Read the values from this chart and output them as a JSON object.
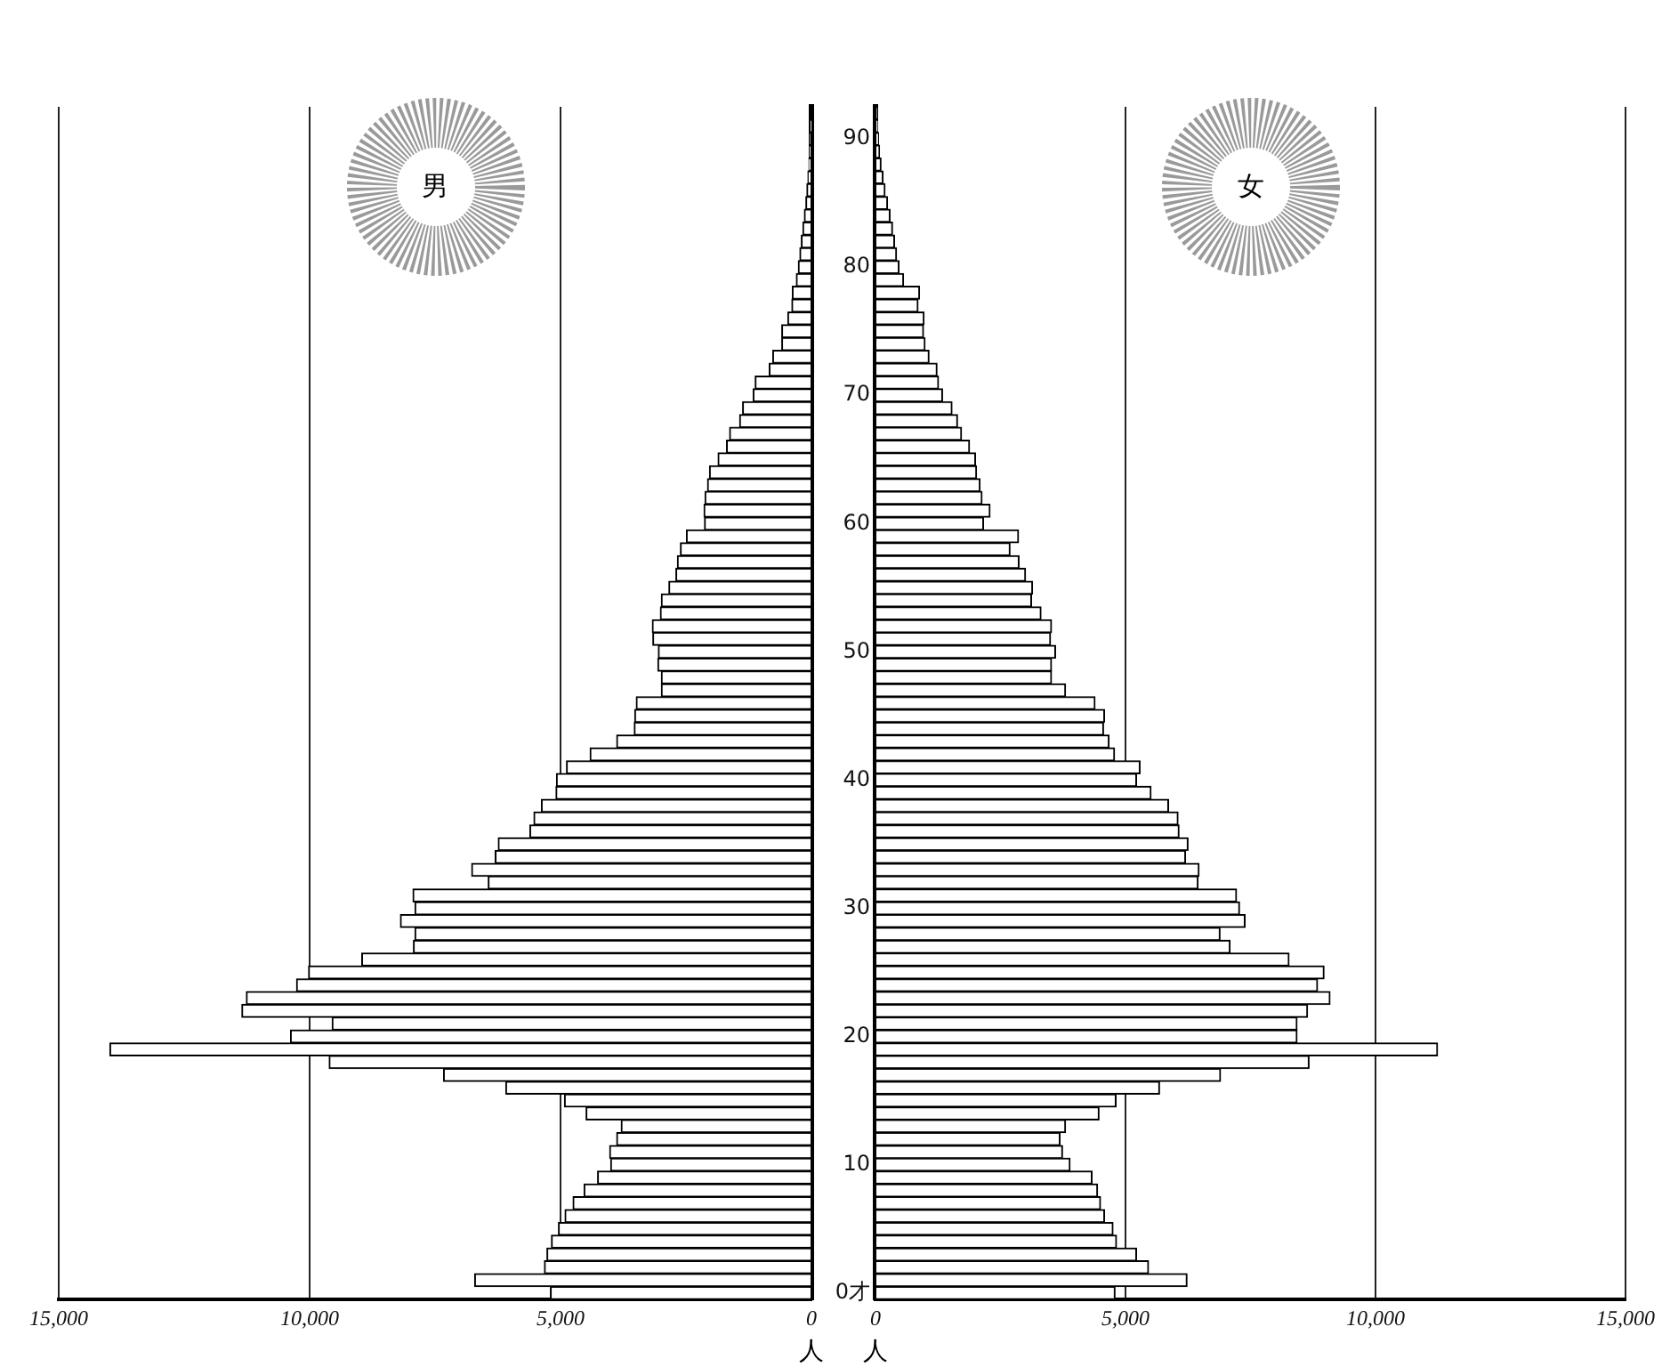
{
  "chart_data": [
    {
      "type": "bar",
      "orientation": "horizontal",
      "title": "男",
      "xlabel": "人",
      "color": "#ffffff",
      "grid": "x",
      "categories": [
        null,
        null,
        null,
        null,
        null,
        null,
        null,
        null,
        null,
        null,
        null,
        null,
        null,
        null,
        null,
        null,
        null,
        null,
        null,
        null,
        null,
        null,
        null,
        null,
        null,
        null,
        null,
        null,
        null,
        null,
        null,
        null,
        null,
        null,
        null,
        null,
        null,
        null,
        null,
        null,
        null,
        null,
        null,
        null,
        null,
        null,
        null,
        null,
        null,
        null,
        null,
        null,
        null,
        null,
        null,
        null,
        null,
        null,
        null,
        null,
        null,
        null,
        null,
        null,
        null,
        null,
        null,
        null,
        null,
        null,
        null,
        null,
        null,
        null,
        null,
        null,
        null,
        null,
        null,
        null,
        null,
        null,
        null,
        null,
        null,
        null,
        null,
        null,
        null,
        null,
        null,
        null,
        null
      ],
      "values": [
        null,
        10,
        20,
        30,
        50,
        70,
        90,
        110,
        140,
        170,
        200,
        230,
        260,
        300,
        380,
        390,
        470,
        590,
        590,
        770,
        840,
        1120,
        1160,
        1370,
        1430,
        1630,
        1690,
        1860,
        2030,
        2070,
        2120,
        2140,
        2130,
        2490,
        2610,
        2670,
        2700,
        2840,
        2990,
        3010,
        3170,
        3160,
        3050,
        3060,
        2990,
        2990,
        3490,
        3520,
        3530,
        3880,
        4410,
        4880,
        5080,
        5090,
        5380,
        5530,
        5610,
        6240,
        6300,
        6770,
        6440,
        7940,
        7900,
        8190,
        7900,
        7930,
        8960,
        10020,
        10260,
        11260,
        11350,
        9550,
        10380,
        13980,
        9610,
        7330,
        6090,
        4920,
        4490,
        3790,
        3880,
        4020,
        4000,
        4260,
        4530,
        4750,
        4910,
        5040,
        5180,
        5270,
        5320,
        6710,
        5200
      ],
      "xlim": [
        15000,
        0
      ],
      "xticks": [
        {
          "value": 15000,
          "label": "15,000"
        },
        {
          "value": 10000,
          "label": "10,000"
        },
        {
          "value": 5000,
          "label": "5,000"
        },
        0
      ]
    },
    {
      "type": "bar",
      "orientation": "horizontal",
      "title": "女",
      "xlabel": "人",
      "color": "#ffffff",
      "grid": "x",
      "categories": [
        null,
        null,
        "90",
        null,
        null,
        null,
        null,
        null,
        null,
        null,
        null,
        null,
        "80",
        null,
        null,
        null,
        null,
        null,
        null,
        null,
        null,
        null,
        "70",
        null,
        null,
        null,
        null,
        null,
        null,
        null,
        null,
        null,
        "60",
        null,
        null,
        null,
        null,
        null,
        null,
        null,
        null,
        null,
        "50",
        null,
        null,
        null,
        null,
        null,
        null,
        null,
        null,
        null,
        "40",
        null,
        null,
        null,
        null,
        null,
        null,
        null,
        null,
        null,
        "30",
        null,
        null,
        null,
        null,
        null,
        null,
        null,
        null,
        null,
        "20",
        null,
        null,
        null,
        null,
        null,
        null,
        null,
        null,
        null,
        "10",
        null,
        null,
        null,
        null,
        null,
        null,
        null,
        null,
        null,
        "0才"
      ],
      "values": [
        20,
        40,
        60,
        80,
        110,
        150,
        190,
        240,
        290,
        340,
        380,
        420,
        470,
        560,
        880,
        850,
        970,
        960,
        990,
        1070,
        1230,
        1260,
        1340,
        1530,
        1640,
        1720,
        1880,
        2000,
        2020,
        2090,
        2130,
        2290,
        2160,
        2860,
        2690,
        2870,
        3000,
        3140,
        3120,
        3310,
        3520,
        3500,
        3600,
        3520,
        3520,
        3800,
        4390,
        4580,
        4560,
        4670,
        4780,
        5290,
        5220,
        5510,
        5860,
        6050,
        6070,
        6250,
        6200,
        6470,
        6450,
        7220,
        7280,
        7390,
        6890,
        7090,
        8270,
        8970,
        8840,
        9090,
        8640,
        8430,
        8430,
        11240,
        8670,
        6900,
        5680,
        4810,
        4470,
        3800,
        3690,
        3740,
        3890,
        4330,
        4440,
        4500,
        4580,
        4750,
        4820,
        5220,
        5460,
        6230,
        4790
      ],
      "xlim": [
        0,
        15000
      ],
      "xticks": [
        0,
        {
          "value": 5000,
          "label": "5,000"
        },
        {
          "value": 10000,
          "label": "10,000"
        },
        {
          "value": 15000,
          "label": "15,000"
        }
      ]
    }
  ]
}
